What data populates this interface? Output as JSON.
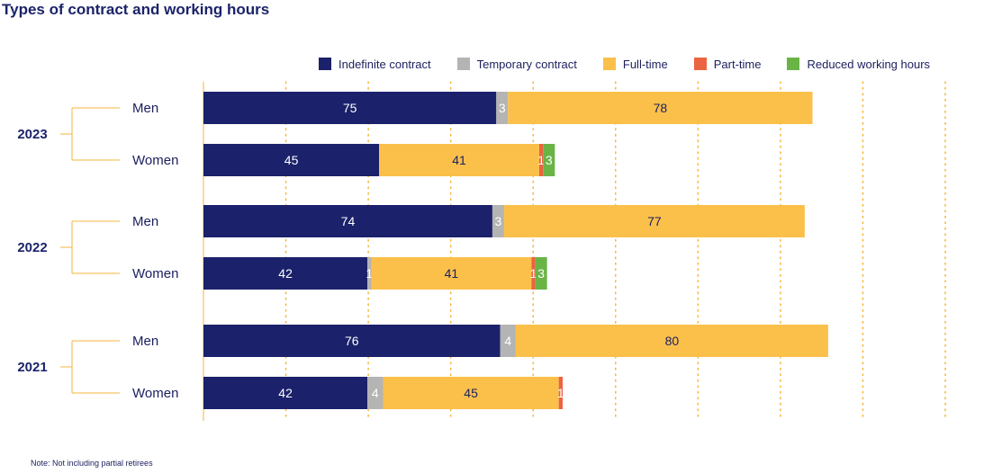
{
  "title": "Types of contract and working hours",
  "note": "Note: Not including partial retirees",
  "legend": [
    {
      "name": "Indefinite contract",
      "color": "#1b216b"
    },
    {
      "name": "Temporary contract",
      "color": "#b4b4b4"
    },
    {
      "name": "Full-time",
      "color": "#fbc04a"
    },
    {
      "name": "Part-time",
      "color": "#ec6340"
    },
    {
      "name": "Reduced working hours",
      "color": "#6ab446"
    }
  ],
  "colors": {
    "text": "#1b1f5e",
    "bracket": "#f4b63c",
    "grid": "#f4b63c"
  },
  "chart_data": {
    "type": "bar",
    "orientation": "horizontal",
    "stacked": true,
    "grid": true,
    "legend_placement": "top-right",
    "xlim": [
      0,
      190
    ],
    "groups": [
      {
        "year": "2023",
        "rows": [
          {
            "label": "Men",
            "values": [
              75,
              3,
              78,
              null,
              null
            ]
          },
          {
            "label": "Women",
            "values": [
              45,
              null,
              41,
              1,
              3
            ]
          }
        ]
      },
      {
        "year": "2022",
        "rows": [
          {
            "label": "Men",
            "values": [
              74,
              3,
              77,
              null,
              null
            ]
          },
          {
            "label": "Women",
            "values": [
              42,
              1,
              41,
              1,
              3
            ]
          }
        ]
      },
      {
        "year": "2021",
        "rows": [
          {
            "label": "Men",
            "values": [
              76,
              4,
              80,
              null,
              null
            ]
          },
          {
            "label": "Women",
            "values": [
              42,
              4,
              45,
              1,
              null
            ]
          }
        ]
      }
    ]
  }
}
